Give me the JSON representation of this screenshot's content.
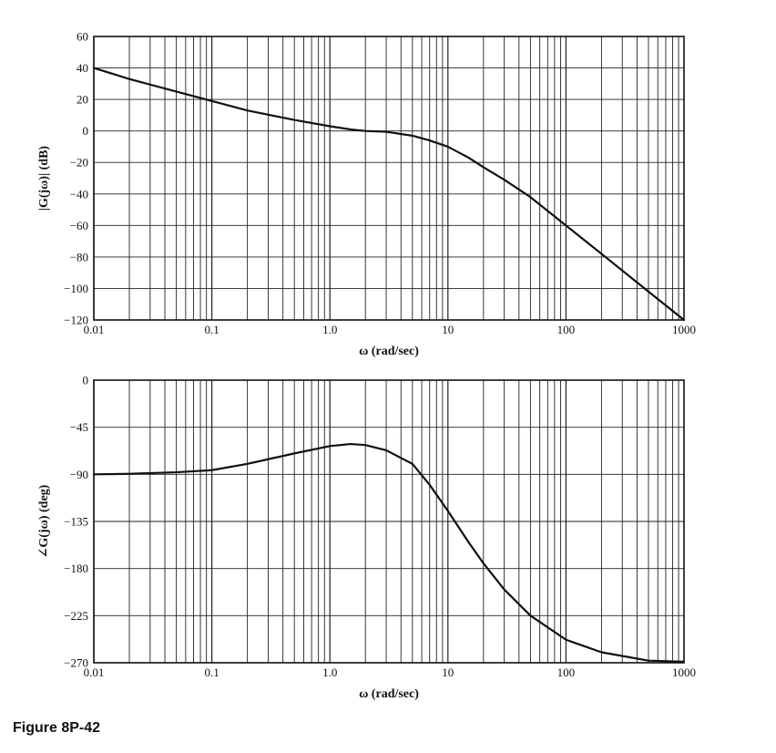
{
  "figure_caption": "Figure 8P-42",
  "colors": {
    "line": "#111111",
    "grid": "#222222",
    "background": "#ffffff"
  },
  "chart_data": [
    {
      "type": "line",
      "x_scale": "log",
      "xlabel": "ω (rad/sec)",
      "ylabel": "|G(jω)| (dB)",
      "xlim": [
        0.01,
        1000
      ],
      "ylim": [
        -120,
        60
      ],
      "x_ticks": [
        0.01,
        0.1,
        1,
        10,
        100,
        1000
      ],
      "x_tick_labels": [
        "0.01",
        "0.1",
        "1.0",
        "10",
        "100",
        "1000"
      ],
      "y_ticks": [
        60,
        40,
        20,
        0,
        -20,
        -40,
        -60,
        -80,
        -100,
        -120
      ],
      "y_tick_labels": [
        "60",
        "40",
        "20",
        "0",
        "−20",
        "−40",
        "−60",
        "−80",
        "−100",
        "−120"
      ],
      "grid": true,
      "series": [
        {
          "x": [
            0.01,
            0.02,
            0.05,
            0.1,
            0.2,
            0.5,
            1,
            1.5,
            2,
            3,
            5,
            7,
            10,
            15,
            20,
            30,
            50,
            100,
            200,
            500,
            1000
          ],
          "y": [
            40,
            33,
            25,
            19,
            13,
            7,
            3,
            1,
            0,
            -0.5,
            -3,
            -6,
            -10,
            -17,
            -23,
            -31,
            -42,
            -60,
            -78,
            -102,
            -120
          ]
        }
      ]
    },
    {
      "type": "line",
      "x_scale": "log",
      "xlabel": "ω (rad/sec)",
      "ylabel": "∠G(jω) (deg)",
      "xlim": [
        0.01,
        1000
      ],
      "ylim": [
        -270,
        0
      ],
      "x_ticks": [
        0.01,
        0.1,
        1,
        10,
        100,
        1000
      ],
      "x_tick_labels": [
        "0.01",
        "0.1",
        "1.0",
        "10",
        "100",
        "1000"
      ],
      "y_ticks": [
        0,
        -45,
        -90,
        -135,
        -180,
        -225,
        -270
      ],
      "y_tick_labels": [
        "0",
        "−45",
        "−90",
        "−135",
        "−180",
        "−225",
        "−270"
      ],
      "grid": true,
      "series": [
        {
          "x": [
            0.01,
            0.02,
            0.05,
            0.1,
            0.2,
            0.5,
            1,
            1.5,
            2,
            3,
            5,
            7,
            10,
            15,
            20,
            30,
            50,
            100,
            200,
            500,
            1000
          ],
          "y": [
            -90,
            -89.5,
            -88,
            -86,
            -80,
            -70,
            -63,
            -61,
            -62,
            -67,
            -80,
            -100,
            -125,
            -155,
            -175,
            -200,
            -225,
            -248,
            -260,
            -268,
            -269
          ]
        }
      ]
    }
  ]
}
